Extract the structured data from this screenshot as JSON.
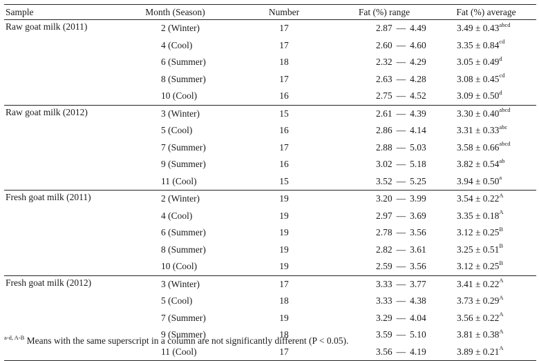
{
  "headers": {
    "sample": "Sample",
    "month": "Month (Season)",
    "number": "Number",
    "fat_range": "Fat (%) range",
    "fat_average": "Fat (%) average"
  },
  "groups": [
    {
      "sample": "Raw goat milk (2011)",
      "rows": [
        {
          "month": "2 (Winter)",
          "number": "17",
          "low": "2.87",
          "high": "4.49",
          "avg": "3.49 ± 0.43",
          "sup": "abcd"
        },
        {
          "month": "4 (Cool)",
          "number": "17",
          "low": "2.60",
          "high": "4.60",
          "avg": "3.35 ± 0.84",
          "sup": "cd"
        },
        {
          "month": "6 (Summer)",
          "number": "18",
          "low": "2.32",
          "high": "4.29",
          "avg": "3.05 ± 0.49",
          "sup": "d"
        },
        {
          "month": "8 (Summer)",
          "number": "17",
          "low": "2.63",
          "high": "4.28",
          "avg": "3.08 ± 0.45",
          "sup": "cd"
        },
        {
          "month": "10 (Cool)",
          "number": "16",
          "low": "2.75",
          "high": "4.52",
          "avg": "3.09 ± 0.50",
          "sup": "d"
        }
      ]
    },
    {
      "sample": "Raw goat milk (2012)",
      "rows": [
        {
          "month": "3 (Winter)",
          "number": "15",
          "low": "2.61",
          "high": "4.39",
          "avg": "3.30 ± 0.40",
          "sup": "abcd"
        },
        {
          "month": "5 (Cool)",
          "number": "16",
          "low": "2.86",
          "high": "4.14",
          "avg": "3.31 ± 0.33",
          "sup": "abc"
        },
        {
          "month": "7 (Summer)",
          "number": "17",
          "low": "2.88",
          "high": "5.03",
          "avg": "3.58 ± 0.66",
          "sup": "abcd"
        },
        {
          "month": "9 (Summer)",
          "number": "16",
          "low": "3.02",
          "high": "5.18",
          "avg": "3.82 ± 0.54",
          "sup": "ab"
        },
        {
          "month": "11 (Cool)",
          "number": "15",
          "low": "3.52",
          "high": "5.25",
          "avg": "3.94 ± 0.50",
          "sup": "a"
        }
      ]
    },
    {
      "sample": "Fresh goat milk (2011)",
      "rows": [
        {
          "month": "2 (Winter)",
          "number": "19",
          "low": "3.20",
          "high": "3.99",
          "avg": "3.54 ± 0.22",
          "sup": "A"
        },
        {
          "month": "4 (Cool)",
          "number": "19",
          "low": "2.97",
          "high": "3.69",
          "avg": "3.35 ± 0.18",
          "sup": "A"
        },
        {
          "month": "6 (Summer)",
          "number": "19",
          "low": "2.78",
          "high": "3.56",
          "avg": "3.12 ± 0.25",
          "sup": "B"
        },
        {
          "month": "8 (Summer)",
          "number": "19",
          "low": "2.82",
          "high": "3.61",
          "avg": "3.25 ± 0.51",
          "sup": "B"
        },
        {
          "month": "10 (Cool)",
          "number": "19",
          "low": "2.59",
          "high": "3.56",
          "avg": "3.12 ± 0.25",
          "sup": "B"
        }
      ]
    },
    {
      "sample": "Fresh goat milk (2012)",
      "rows": [
        {
          "month": "3 (Winter)",
          "number": "17",
          "low": "3.33",
          "high": "3.77",
          "avg": "3.41 ± 0.22",
          "sup": "A"
        },
        {
          "month": "5 (Cool)",
          "number": "18",
          "low": "3.33",
          "high": "4.38",
          "avg": "3.73 ± 0.29",
          "sup": "A"
        },
        {
          "month": "7 (Summer)",
          "number": "19",
          "low": "3.29",
          "high": "4.04",
          "avg": "3.56 ± 0.22",
          "sup": "A"
        },
        {
          "month": "9 (Summer)",
          "number": "18",
          "low": "3.59",
          "high": "5.10",
          "avg": "3.81 ± 0.38",
          "sup": "A"
        },
        {
          "month": "11 (Cool)",
          "number": "17",
          "low": "3.56",
          "high": "4.19",
          "avg": "3.89 ± 0.21",
          "sup": "A"
        }
      ]
    }
  ],
  "range_separator": "—",
  "footnote": {
    "sup": "a-d, A-B",
    "text": "Means with the same superscript in a column are not significantly different (P < 0.05)."
  }
}
